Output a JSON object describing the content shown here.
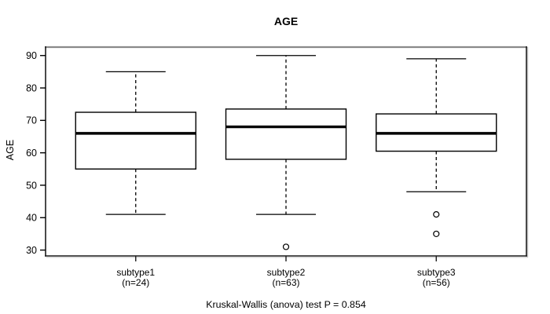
{
  "title": "AGE",
  "footer": "Kruskal-Wallis (anova) test P = 0.854",
  "chart_data": {
    "type": "boxplot",
    "title": "AGE",
    "ylabel": "AGE",
    "xlabel": "",
    "yticks": [
      30,
      40,
      50,
      60,
      70,
      80,
      90
    ],
    "ylim": [
      28.2,
      92.6
    ],
    "grid": false,
    "legend": false,
    "annotation": "Kruskal-Wallis (anova) test P = 0.854",
    "groups": [
      {
        "label": "subtype1",
        "sublabel": "(n=24)",
        "whisker_low": 41,
        "q1": 55,
        "median": 66,
        "q3": 72.5,
        "whisker_high": 85,
        "outliers": []
      },
      {
        "label": "subtype2",
        "sublabel": "(n=63)",
        "whisker_low": 41,
        "q1": 58,
        "median": 68,
        "q3": 73.5,
        "whisker_high": 90,
        "outliers": [
          31
        ]
      },
      {
        "label": "subtype3",
        "sublabel": "(n=56)",
        "whisker_low": 48,
        "q1": 60.5,
        "median": 66,
        "q3": 72,
        "whisker_high": 89,
        "outliers": [
          41,
          35
        ]
      }
    ]
  },
  "colors": {
    "background": "#ffffff",
    "foreground": "#000000",
    "frame_top": "#8a8a8a",
    "frame": "#1c1c1c",
    "box_fill": "#ffffff",
    "shadow": "#cccccc"
  }
}
